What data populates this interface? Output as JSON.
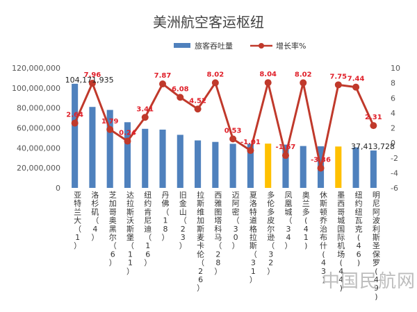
{
  "chart_data": {
    "type": "bar",
    "title": "美洲航空客运枢纽",
    "categories": [
      "亚特兰大（1）",
      "洛杉矶（4）",
      "芝加哥奥黑尔（6）",
      "达拉斯沃斯堡（11）",
      "纽约肯尼迪（16）",
      "丹佛（18）",
      "旧金山（23）",
      "拉斯维加斯麦卡伦（26）",
      "西雅图塔科马（28）",
      "迈阿密（30）",
      "夏洛特道格拉斯（31）",
      "多伦多皮尔逊（32）",
      "凤凰城（34）",
      "奥兰多(41)",
      "休斯顿乔治布什(43)",
      "墨西哥城国际机场(44)",
      "纽约纽瓦克(46)",
      "明尼阿波利斯圣保罗(49)"
    ],
    "series": [
      {
        "name": "旅客吞吐量",
        "type": "bar",
        "axis": "left",
        "values": [
          104171935,
          81000000,
          78000000,
          65700000,
          59100000,
          58300000,
          53100000,
          47500000,
          46000000,
          44100000,
          44000000,
          44300000,
          43300000,
          41900000,
          41600000,
          41400000,
          40500000,
          37413728
        ],
        "colors": [
          "#4F81BD",
          "#4F81BD",
          "#4F81BD",
          "#4F81BD",
          "#4F81BD",
          "#4F81BD",
          "#4F81BD",
          "#4F81BD",
          "#4F81BD",
          "#4F81BD",
          "#4F81BD",
          "#FFC000",
          "#4F81BD",
          "#4F81BD",
          "#4F81BD",
          "#FFC000",
          "#4F81BD",
          "#4F81BD"
        ],
        "labeled_values": [
          {
            "index": 0,
            "text": "104,171,935"
          },
          {
            "index": 17,
            "text": "37,413,728"
          }
        ]
      },
      {
        "name": "增长率%",
        "type": "line",
        "axis": "right",
        "color": "#C0392B",
        "values": [
          2.64,
          7.96,
          1.79,
          0.24,
          3.41,
          7.87,
          6.08,
          4.52,
          8.02,
          0.53,
          -1.01,
          8.04,
          -1.67,
          8.02,
          -3.36,
          7.75,
          7.44,
          2.31
        ]
      }
    ],
    "y_left": {
      "min": 0,
      "max": 120000000,
      "ticks": [
        "0",
        "20,000,000",
        "40,000,000",
        "60,000,000",
        "80,000,000",
        "100,000,000",
        "120,000,000"
      ]
    },
    "y_right": {
      "min": -6,
      "max": 10,
      "ticks": [
        "-6",
        "-4",
        "-2",
        "0",
        "2",
        "4",
        "6",
        "8",
        "10"
      ]
    },
    "legend": {
      "position": "top"
    },
    "grid": false,
    "colors": {
      "bar": "#4F81BD",
      "bar_highlight": "#FFC000",
      "line": "#C0392B",
      "label": "#E0202A"
    }
  },
  "watermark": "中国民航网"
}
